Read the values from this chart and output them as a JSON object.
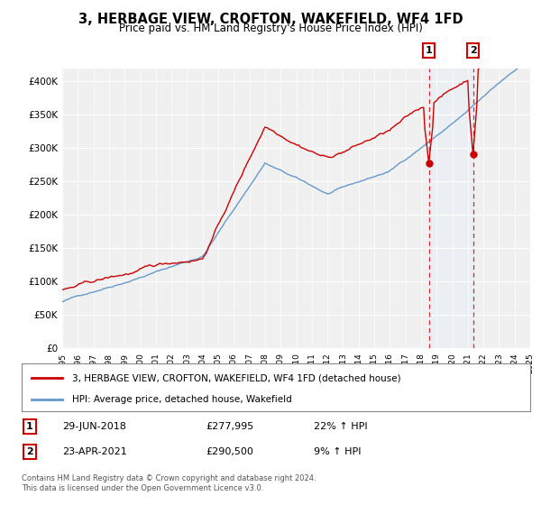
{
  "title": "3, HERBAGE VIEW, CROFTON, WAKEFIELD, WF4 1FD",
  "subtitle": "Price paid vs. HM Land Registry's House Price Index (HPI)",
  "legend_line1": "3, HERBAGE VIEW, CROFTON, WAKEFIELD, WF4 1FD (detached house)",
  "legend_line2": "HPI: Average price, detached house, Wakefield",
  "annotation1_label": "1",
  "annotation1_date": "29-JUN-2018",
  "annotation1_price": "£277,995",
  "annotation1_hpi": "22% ↑ HPI",
  "annotation2_label": "2",
  "annotation2_date": "23-APR-2021",
  "annotation2_price": "£290,500",
  "annotation2_hpi": "9% ↑ HPI",
  "footer": "Contains HM Land Registry data © Crown copyright and database right 2024.\nThis data is licensed under the Open Government Licence v3.0.",
  "red_color": "#cc0000",
  "blue_color": "#6699cc",
  "shade_color": "#ddeeff",
  "background_color": "#ffffff",
  "plot_bg_color": "#f0f0f0",
  "ylim": [
    0,
    420000
  ],
  "yticks": [
    0,
    50000,
    100000,
    150000,
    200000,
    250000,
    300000,
    350000,
    400000
  ],
  "ytick_labels": [
    "£0",
    "£50K",
    "£100K",
    "£150K",
    "£200K",
    "£250K",
    "£300K",
    "£350K",
    "£400K"
  ],
  "sale1_year": 2018.5,
  "sale1_price": 277995,
  "sale2_year": 2021.33,
  "sale2_price": 290500
}
